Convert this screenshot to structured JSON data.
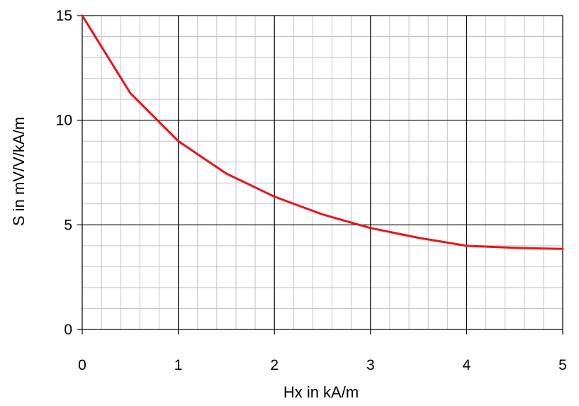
{
  "chart_data": {
    "type": "line",
    "title": "",
    "xlabel": "Hx in kA/m",
    "ylabel": "S in mV/V/kA/m",
    "xlim": [
      0,
      5
    ],
    "ylim": [
      0,
      15
    ],
    "x_ticks": [
      "0",
      "1",
      "2",
      "3",
      "4",
      "5"
    ],
    "y_ticks": [
      "0",
      "5",
      "10",
      "15"
    ],
    "grid": true,
    "legend": "none",
    "series": [
      {
        "color": "#e8141a",
        "x": [
          0,
          0.5,
          1.0,
          1.5,
          2.0,
          2.5,
          3.0,
          3.5,
          4.0,
          4.5,
          5.0
        ],
        "y": [
          15.0,
          11.3,
          9.0,
          7.45,
          6.35,
          5.5,
          4.85,
          4.38,
          4.0,
          3.9,
          3.85
        ]
      }
    ]
  }
}
